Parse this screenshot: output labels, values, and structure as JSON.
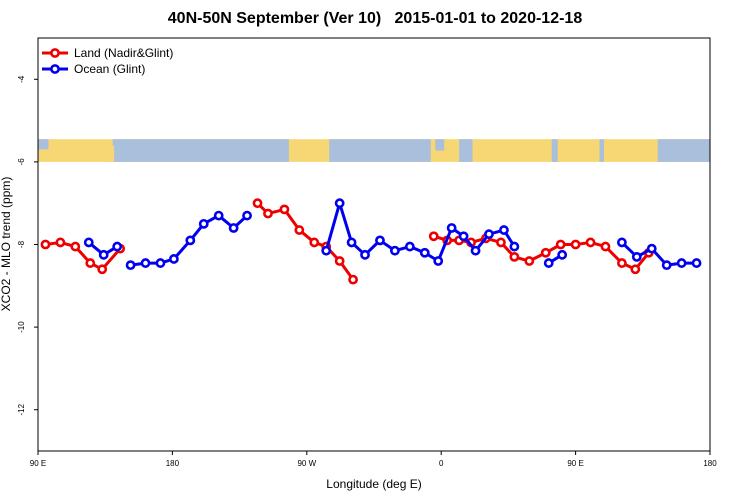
{
  "chart_data": {
    "type": "line",
    "title": "40N-50N September (Ver 10)   2015-01-01 to 2020-12-18",
    "xlabel": "Longitude (deg E)",
    "ylabel": "XCO2 - MLO trend (ppm)",
    "xlim": [
      90,
      540
    ],
    "ylim": [
      -13,
      -3
    ],
    "x_ticks": [
      {
        "value": 90,
        "label": "90 E"
      },
      {
        "value": 180,
        "label": "180"
      },
      {
        "value": 270,
        "label": "90 W"
      },
      {
        "value": 360,
        "label": "0"
      },
      {
        "value": 450,
        "label": "90 E"
      },
      {
        "value": 540,
        "label": "180"
      }
    ],
    "y_ticks": [
      -12,
      -10,
      -8,
      -6,
      -4
    ],
    "legend_position": "top-left",
    "map_strip": {
      "y_range": [
        -6.0,
        -5.45
      ],
      "land_color": "#f7d774",
      "ocean_color": "#a9bfdc"
    },
    "series": [
      {
        "name": "Land (Nadir&Glint)",
        "color": "#ee0000",
        "segments": [
          [
            [
              95,
              -8.0
            ],
            [
              105,
              -7.95
            ],
            [
              115,
              -8.05
            ],
            [
              125,
              -8.45
            ],
            [
              133,
              -8.6
            ],
            [
              145,
              -8.1
            ]
          ],
          [
            [
              237,
              -7.0
            ],
            [
              244,
              -7.25
            ],
            [
              255,
              -7.15
            ],
            [
              265,
              -7.65
            ],
            [
              275,
              -7.95
            ],
            [
              283,
              -8.05
            ],
            [
              292,
              -8.4
            ],
            [
              301,
              -8.85
            ]
          ],
          [
            [
              355,
              -7.8
            ],
            [
              364,
              -7.9
            ],
            [
              372,
              -7.9
            ],
            [
              380,
              -7.95
            ],
            [
              390,
              -7.85
            ],
            [
              400,
              -7.95
            ],
            [
              409,
              -8.3
            ],
            [
              419,
              -8.4
            ],
            [
              430,
              -8.2
            ],
            [
              440,
              -8.0
            ],
            [
              450,
              -8.0
            ],
            [
              460,
              -7.95
            ],
            [
              470,
              -8.05
            ],
            [
              481,
              -8.45
            ],
            [
              490,
              -8.6
            ],
            [
              499,
              -8.2
            ]
          ]
        ]
      },
      {
        "name": "Ocean (Glint)",
        "color": "#0000ee",
        "segments": [
          [
            [
              124,
              -7.95
            ],
            [
              134,
              -8.25
            ],
            [
              143,
              -8.05
            ]
          ],
          [
            [
              152,
              -8.5
            ],
            [
              162,
              -8.45
            ],
            [
              172,
              -8.45
            ],
            [
              181,
              -8.35
            ],
            [
              192,
              -7.9
            ],
            [
              201,
              -7.5
            ],
            [
              211,
              -7.3
            ],
            [
              221,
              -7.6
            ],
            [
              230,
              -7.3
            ]
          ],
          [
            [
              283,
              -8.15
            ],
            [
              292,
              -7.0
            ],
            [
              300,
              -7.95
            ],
            [
              309,
              -8.25
            ],
            [
              319,
              -7.9
            ],
            [
              329,
              -8.15
            ],
            [
              339,
              -8.05
            ],
            [
              349,
              -8.2
            ],
            [
              358,
              -8.4
            ],
            [
              367,
              -7.6
            ],
            [
              375,
              -7.8
            ],
            [
              383,
              -8.15
            ],
            [
              392,
              -7.75
            ],
            [
              402,
              -7.65
            ],
            [
              409,
              -8.05
            ]
          ],
          [
            [
              432,
              -8.45
            ],
            [
              441,
              -8.25
            ]
          ],
          [
            [
              481,
              -7.95
            ],
            [
              491,
              -8.3
            ],
            [
              501,
              -8.1
            ],
            [
              511,
              -8.5
            ],
            [
              521,
              -8.45
            ],
            [
              531,
              -8.45
            ]
          ]
        ]
      }
    ]
  }
}
